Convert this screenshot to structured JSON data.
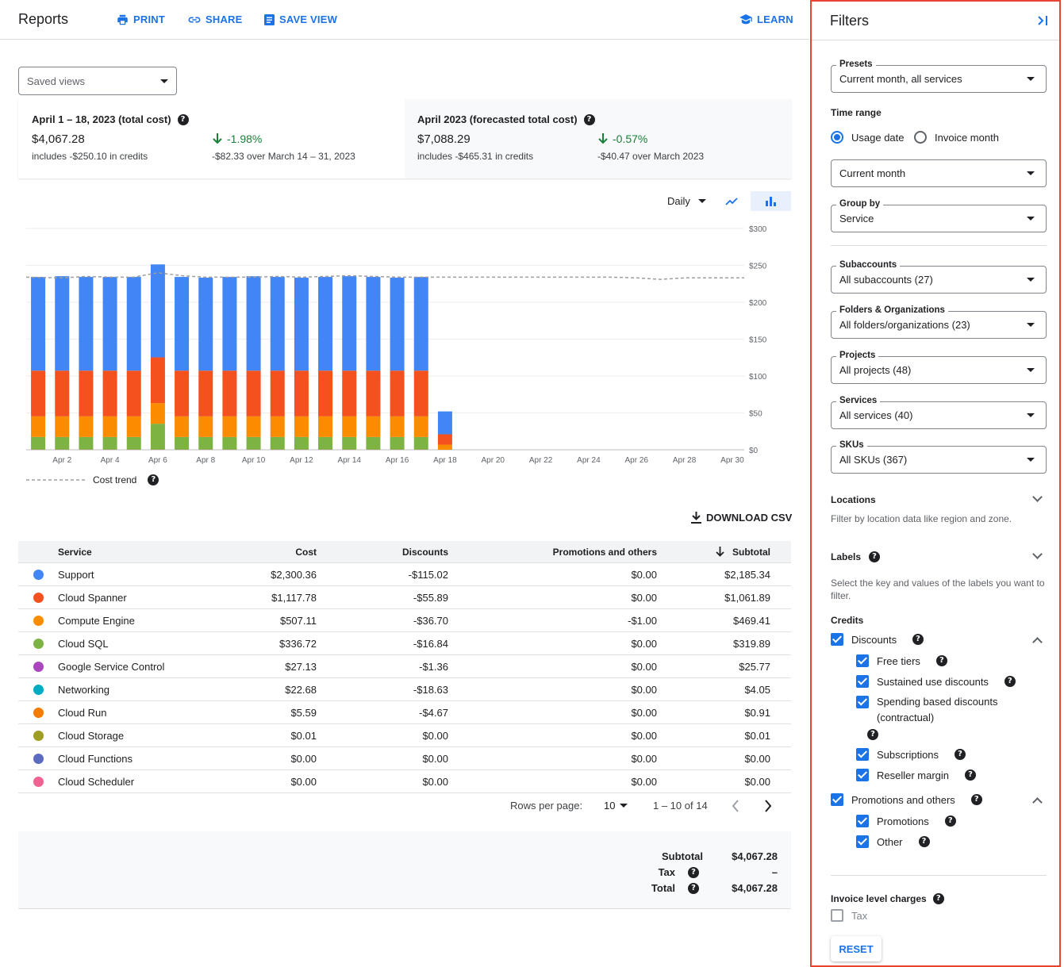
{
  "header": {
    "title": "Reports",
    "print_label": "PRINT",
    "share_label": "SHARE",
    "save_view_label": "SAVE VIEW",
    "learn_label": "LEARN"
  },
  "saved_views": {
    "value": "Saved views"
  },
  "summary": {
    "left": {
      "title": "April 1 – 18, 2023 (total cost)",
      "amount": "$4,067.28",
      "credits": "includes -$250.10 in credits",
      "change": "-1.98%",
      "change_note": "-$82.33 over March 14 – 31, 2023"
    },
    "right": {
      "title": "April 2023 (forecasted total cost)",
      "amount": "$7,088.29",
      "credits": "includes -$465.31 in credits",
      "change": "-0.57%",
      "change_note": "-$40.47 over March 2023"
    }
  },
  "chart_controls": {
    "granularity": "Daily"
  },
  "chart_data": {
    "type": "bar",
    "stacked": true,
    "categories": [
      "Apr 1",
      "Apr 2",
      "Apr 3",
      "Apr 4",
      "Apr 5",
      "Apr 6",
      "Apr 7",
      "Apr 8",
      "Apr 9",
      "Apr 10",
      "Apr 11",
      "Apr 12",
      "Apr 13",
      "Apr 14",
      "Apr 15",
      "Apr 16",
      "Apr 17",
      "Apr 18",
      "Apr 19",
      "Apr 20",
      "Apr 21",
      "Apr 22",
      "Apr 23",
      "Apr 24",
      "Apr 25",
      "Apr 26",
      "Apr 27",
      "Apr 28",
      "Apr 29",
      "Apr 30"
    ],
    "x_tick_labels": [
      "Apr 2",
      "Apr 4",
      "Apr 6",
      "Apr 8",
      "Apr 10",
      "Apr 12",
      "Apr 14",
      "Apr 16",
      "Apr 18",
      "Apr 20",
      "Apr 22",
      "Apr 24",
      "Apr 26",
      "Apr 28",
      "Apr 30"
    ],
    "y_tick_labels": [
      "$0",
      "$50",
      "$100",
      "$150",
      "$200",
      "$250",
      "$300"
    ],
    "ylim": [
      0,
      300
    ],
    "series": [
      {
        "name": "Cloud Scheduler",
        "color": "#f06292",
        "values": [
          0.3,
          0.3,
          0.3,
          0.3,
          0.3,
          0.3,
          0.3,
          0.3,
          0.3,
          0.3,
          0.3,
          0.3,
          0.3,
          0.3,
          0.3,
          0.3,
          0.3,
          0,
          0,
          0,
          0,
          0,
          0,
          0,
          0,
          0,
          0,
          0,
          0,
          0
        ]
      },
      {
        "name": "Cloud SQL",
        "color": "#7cb342",
        "values": [
          17,
          17,
          17,
          17,
          17,
          35,
          17,
          17,
          17,
          17,
          17,
          17,
          17,
          17,
          17,
          17,
          17,
          0,
          0,
          0,
          0,
          0,
          0,
          0,
          0,
          0,
          0,
          0,
          0,
          0
        ]
      },
      {
        "name": "Compute Engine",
        "color": "#fb8c00",
        "values": [
          28,
          28,
          28,
          28,
          28,
          28,
          28,
          28,
          28,
          28,
          28,
          28,
          28,
          28,
          28,
          28,
          28,
          7,
          0,
          0,
          0,
          0,
          0,
          0,
          0,
          0,
          0,
          0,
          0,
          0
        ]
      },
      {
        "name": "Cloud Spanner",
        "color": "#f4511e",
        "values": [
          62,
          62,
          62,
          62,
          62,
          62,
          62,
          62,
          62,
          62,
          62,
          62,
          62,
          62,
          62,
          62,
          62,
          14,
          0,
          0,
          0,
          0,
          0,
          0,
          0,
          0,
          0,
          0,
          0,
          0
        ]
      },
      {
        "name": "Support",
        "color": "#4285f4",
        "values": [
          127,
          128,
          127,
          127,
          127,
          126,
          127,
          126,
          127,
          128,
          127,
          126,
          127,
          128,
          127,
          126,
          127,
          31,
          0,
          0,
          0,
          0,
          0,
          0,
          0,
          0,
          0,
          0,
          0,
          0
        ]
      }
    ],
    "cost_trend": {
      "name": "Cost trend",
      "values": [
        234,
        233,
        235,
        234,
        234,
        240,
        236,
        234,
        234,
        234,
        235,
        234,
        235,
        236,
        235,
        234,
        234,
        234,
        234,
        234,
        234,
        234,
        234,
        234,
        234,
        233,
        231,
        233,
        233,
        233
      ]
    },
    "legend": "bottom-left"
  },
  "download_label": "DOWNLOAD CSV",
  "table": {
    "headers": [
      "Service",
      "Cost",
      "Discounts",
      "Promotions and others",
      "Subtotal"
    ],
    "rows": [
      {
        "service": "Support",
        "color": "#4285f4",
        "cost": "$2,300.36",
        "discounts": "-$115.02",
        "promotions": "$0.00",
        "subtotal": "$2,185.34"
      },
      {
        "service": "Cloud Spanner",
        "color": "#f4511e",
        "cost": "$1,117.78",
        "discounts": "-$55.89",
        "promotions": "$0.00",
        "subtotal": "$1,061.89"
      },
      {
        "service": "Compute Engine",
        "color": "#fb8c00",
        "cost": "$507.11",
        "discounts": "-$36.70",
        "promotions": "-$1.00",
        "subtotal": "$469.41"
      },
      {
        "service": "Cloud SQL",
        "color": "#7cb342",
        "cost": "$336.72",
        "discounts": "-$16.84",
        "promotions": "$0.00",
        "subtotal": "$319.89"
      },
      {
        "service": "Google Service Control",
        "color": "#ab47bc",
        "cost": "$27.13",
        "discounts": "-$1.36",
        "promotions": "$0.00",
        "subtotal": "$25.77"
      },
      {
        "service": "Networking",
        "color": "#00acc1",
        "cost": "$22.68",
        "discounts": "-$18.63",
        "promotions": "$0.00",
        "subtotal": "$4.05"
      },
      {
        "service": "Cloud Run",
        "color": "#f57c00",
        "cost": "$5.59",
        "discounts": "-$4.67",
        "promotions": "$0.00",
        "subtotal": "$0.91"
      },
      {
        "service": "Cloud Storage",
        "color": "#9e9d24",
        "cost": "$0.01",
        "discounts": "$0.00",
        "promotions": "$0.00",
        "subtotal": "$0.01"
      },
      {
        "service": "Cloud Functions",
        "color": "#5c6bc0",
        "cost": "$0.00",
        "discounts": "$0.00",
        "promotions": "$0.00",
        "subtotal": "$0.00"
      },
      {
        "service": "Cloud Scheduler",
        "color": "#f06292",
        "cost": "$0.00",
        "discounts": "$0.00",
        "promotions": "$0.00",
        "subtotal": "$0.00"
      }
    ],
    "pagination": {
      "rows_per_page_label": "Rows per page:",
      "rows_per_page": "10",
      "range": "1 – 10 of 14"
    }
  },
  "totals": {
    "subtotal_label": "Subtotal",
    "subtotal": "$4,067.28",
    "tax_label": "Tax",
    "tax": "–",
    "total_label": "Total",
    "total": "$4,067.28"
  },
  "filters": {
    "title": "Filters",
    "presets": {
      "label": "Presets",
      "value": "Current month, all services"
    },
    "time_range": {
      "label": "Time range",
      "option_usage": "Usage date",
      "option_invoice": "Invoice month",
      "selected": "Usage date",
      "value": "Current month"
    },
    "group_by": {
      "label": "Group by",
      "value": "Service"
    },
    "subaccounts": {
      "label": "Subaccounts",
      "value": "All subaccounts (27)"
    },
    "folders": {
      "label": "Folders & Organizations",
      "value": "All folders/organizations (23)"
    },
    "projects": {
      "label": "Projects",
      "value": "All projects (48)"
    },
    "services": {
      "label": "Services",
      "value": "All services (40)"
    },
    "skus": {
      "label": "SKUs",
      "value": "All SKUs (367)"
    },
    "locations": {
      "label": "Locations",
      "desc": "Filter by location data like region and zone."
    },
    "labels": {
      "label": "Labels",
      "desc_line1": "Select the key and values of the labels you want to",
      "desc_line2": "filter."
    },
    "credits": {
      "label": "Credits",
      "discounts": "Discounts",
      "free_tiers": "Free tiers",
      "sustained": "Sustained use discounts",
      "spending_line1": "Spending based discounts",
      "spending_line2": "(contractual)",
      "subscriptions": "Subscriptions",
      "reseller": "Reseller margin",
      "promotions_and_others": "Promotions and others",
      "promotions": "Promotions",
      "other": "Other"
    },
    "invoice_level": {
      "label": "Invoice level charges",
      "tax": "Tax"
    },
    "reset_label": "RESET"
  }
}
